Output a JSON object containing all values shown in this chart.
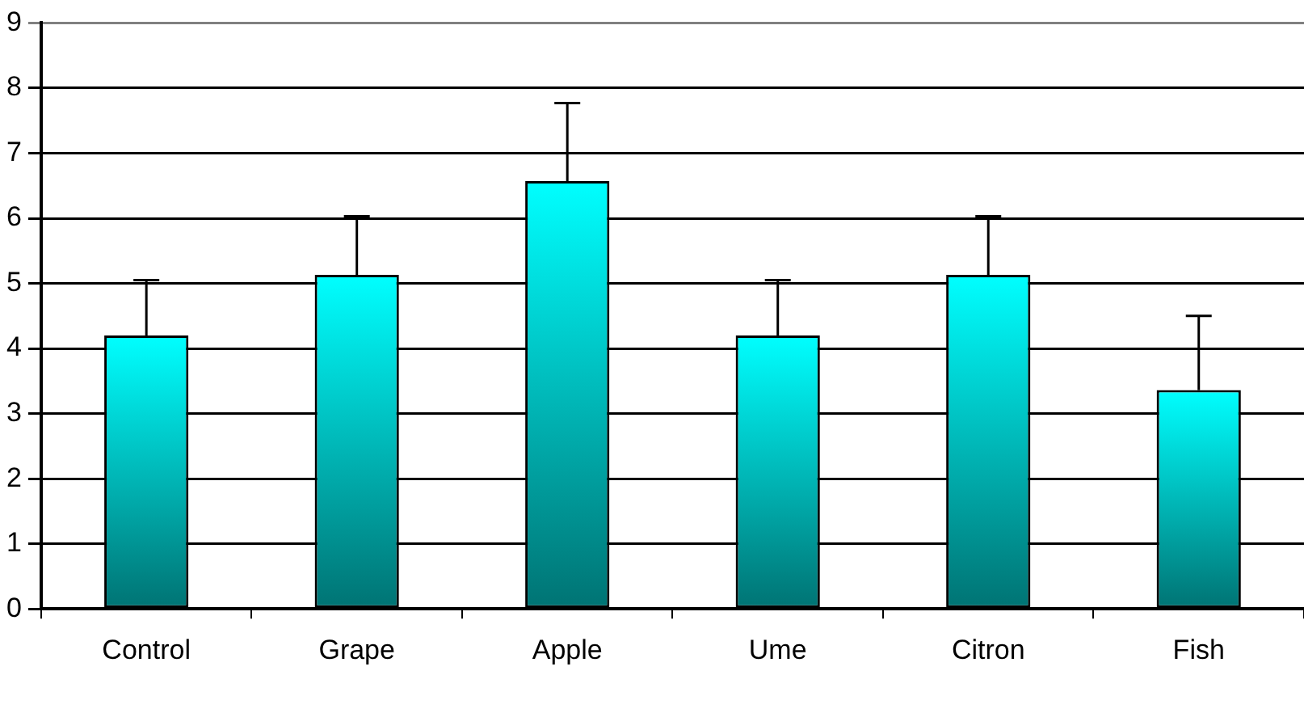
{
  "chart_data": {
    "type": "bar",
    "categories": [
      "Control",
      "Grape",
      "Apple",
      "Ume",
      "Citron",
      "Fish"
    ],
    "values": [
      4.2,
      5.13,
      6.57,
      4.2,
      5.13,
      3.36
    ],
    "errors": [
      [
        4.2,
        5.05
      ],
      [
        5.13,
        6.03
      ],
      [
        6.57,
        7.77
      ],
      [
        4.2,
        5.05
      ],
      [
        5.13,
        6.03
      ],
      [
        3.36,
        4.5
      ]
    ],
    "color": "#00ffff",
    "ylim": [
      0,
      9
    ],
    "yticks": [
      0,
      1,
      2,
      3,
      4,
      5,
      6,
      7,
      8,
      9
    ],
    "grid": "y",
    "legend": false
  }
}
